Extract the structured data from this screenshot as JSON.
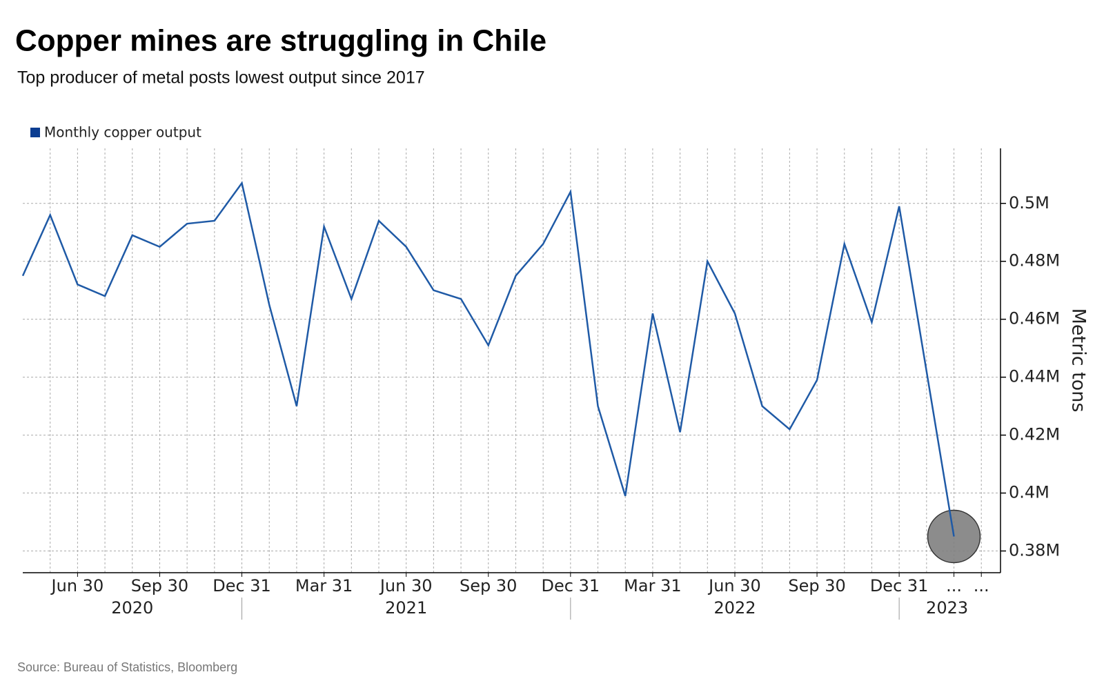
{
  "chart_data": {
    "type": "line",
    "title": "Copper mines are struggling in Chile",
    "subtitle": "Top producer of metal posts lowest output since 2017",
    "y_label": "Metric tons",
    "source": "Source: Bureau of Statistics, Bloomberg",
    "x": [
      "2020-04-30",
      "2020-05-31",
      "2020-06-30",
      "2020-07-31",
      "2020-08-31",
      "2020-09-30",
      "2020-10-31",
      "2020-11-30",
      "2020-12-31",
      "2021-01-31",
      "2021-02-28",
      "2021-03-31",
      "2021-04-30",
      "2021-05-31",
      "2021-06-30",
      "2021-07-31",
      "2021-08-31",
      "2021-09-30",
      "2021-10-31",
      "2021-11-30",
      "2021-12-31",
      "2022-01-31",
      "2022-02-28",
      "2022-03-31",
      "2022-04-30",
      "2022-05-31",
      "2022-06-30",
      "2022-07-31",
      "2022-08-31",
      "2022-09-30",
      "2022-10-31",
      "2022-11-30",
      "2022-12-31",
      "2023-01-31",
      "2023-02-28"
    ],
    "series": [
      {
        "name": "Monthly copper output",
        "color": "#1f5aa6",
        "values": [
          475000,
          496000,
          472000,
          468000,
          489000,
          485000,
          493000,
          494000,
          507000,
          465000,
          430000,
          492000,
          467000,
          494000,
          485000,
          470000,
          467000,
          451000,
          475000,
          486000,
          504000,
          430000,
          399000,
          462000,
          421000,
          480000,
          462000,
          430000,
          422000,
          439000,
          486000,
          459000,
          499000,
          442000,
          385000
        ]
      }
    ],
    "highlight_color": "#808080",
    "legend_color": "#0b3d91",
    "ylim": [
      372500,
      519000
    ],
    "yticks": [
      {
        "value": 380000,
        "label": "0.38M"
      },
      {
        "value": 400000,
        "label": "0.4M"
      },
      {
        "value": 420000,
        "label": "0.42M"
      },
      {
        "value": 440000,
        "label": "0.44M"
      },
      {
        "value": 460000,
        "label": "0.46M"
      },
      {
        "value": 480000,
        "label": "0.48M"
      },
      {
        "value": 500000,
        "label": "0.5M"
      }
    ],
    "xticks": [
      {
        "value": "2020-06-30",
        "label": "Jun 30"
      },
      {
        "value": "2020-09-30",
        "label": "Sep 30"
      },
      {
        "value": "2020-12-31",
        "label": "Dec 31"
      },
      {
        "value": "2021-03-31",
        "label": "Mar 31"
      },
      {
        "value": "2021-06-30",
        "label": "Jun 30"
      },
      {
        "value": "2021-09-30",
        "label": "Sep 30"
      },
      {
        "value": "2021-12-31",
        "label": "Dec 31"
      },
      {
        "value": "2022-03-31",
        "label": "Mar 31"
      },
      {
        "value": "2022-06-30",
        "label": "Jun 30"
      },
      {
        "value": "2022-09-30",
        "label": "Sep 30"
      },
      {
        "value": "2022-12-31",
        "label": "Dec 31"
      },
      {
        "value": "2023-02-28",
        "label": "..."
      },
      {
        "value": "2023-03-31",
        "label": "..."
      }
    ],
    "years": [
      "2020",
      "2021",
      "2022",
      "2023"
    ],
    "grid": true
  }
}
